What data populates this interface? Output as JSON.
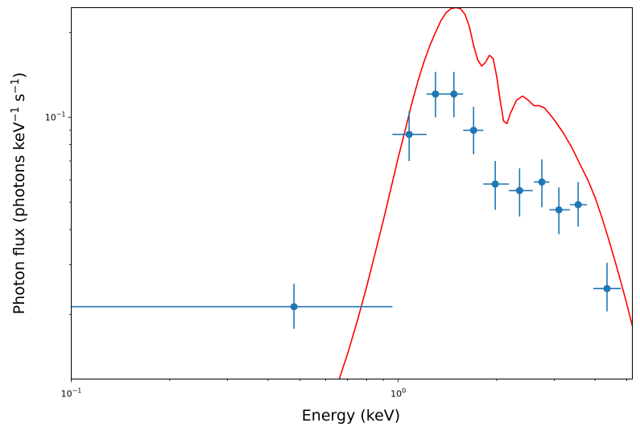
{
  "chart_data": {
    "type": "scatter",
    "xlabel": "Energy (keV)",
    "ylabel": {
      "prefix": "Photon flux (photons keV",
      "sup1": "−1",
      "mid": " s",
      "sup2": "−1",
      "suffix": ")"
    },
    "x_scale": "log",
    "y_scale": "log",
    "xlim": [
      0.1,
      5.2
    ],
    "ylim": [
      0.0118,
      0.245
    ],
    "x_ticks": [
      {
        "value": 0.1,
        "base": "10",
        "exp": "−1"
      },
      {
        "value": 1,
        "base": "10",
        "exp": "0"
      }
    ],
    "y_ticks": [
      {
        "value": 0.1,
        "base": "10",
        "exp": "−1"
      }
    ],
    "colors": {
      "data": "#1f77b4",
      "model": "#ff0000"
    },
    "series": [
      {
        "kind": "errorbar-points",
        "points": [
          {
            "x": 0.48,
            "xlo": 0.1,
            "xhi": 0.96,
            "y": 0.0213,
            "ylo": 0.0178,
            "yhi": 0.0257
          },
          {
            "x": 1.08,
            "xlo": 0.96,
            "xhi": 1.22,
            "y": 0.087,
            "ylo": 0.07,
            "yhi": 0.105
          },
          {
            "x": 1.3,
            "xlo": 1.22,
            "xhi": 1.38,
            "y": 0.121,
            "ylo": 0.1,
            "yhi": 0.145
          },
          {
            "x": 1.48,
            "xlo": 1.38,
            "xhi": 1.58,
            "y": 0.121,
            "ylo": 0.1,
            "yhi": 0.145
          },
          {
            "x": 1.7,
            "xlo": 1.58,
            "xhi": 1.82,
            "y": 0.09,
            "ylo": 0.074,
            "yhi": 0.109
          },
          {
            "x": 1.98,
            "xlo": 1.82,
            "xhi": 2.18,
            "y": 0.058,
            "ylo": 0.047,
            "yhi": 0.07
          },
          {
            "x": 2.35,
            "xlo": 2.18,
            "xhi": 2.58,
            "y": 0.055,
            "ylo": 0.0445,
            "yhi": 0.066
          },
          {
            "x": 2.75,
            "xlo": 2.6,
            "xhi": 2.9,
            "y": 0.059,
            "ylo": 0.048,
            "yhi": 0.071
          },
          {
            "x": 3.1,
            "xlo": 2.9,
            "xhi": 3.35,
            "y": 0.047,
            "ylo": 0.0385,
            "yhi": 0.0565
          },
          {
            "x": 3.55,
            "xlo": 3.35,
            "xhi": 3.78,
            "y": 0.049,
            "ylo": 0.041,
            "yhi": 0.059
          },
          {
            "x": 4.35,
            "xlo": 3.95,
            "xhi": 4.8,
            "y": 0.0247,
            "ylo": 0.0205,
            "yhi": 0.0305
          }
        ]
      },
      {
        "kind": "model-line",
        "x": [
          0.66,
          0.7,
          0.75,
          0.8,
          0.85,
          0.9,
          0.95,
          1.0,
          1.05,
          1.1,
          1.15,
          1.2,
          1.25,
          1.3,
          1.35,
          1.4,
          1.45,
          1.5,
          1.55,
          1.6,
          1.65,
          1.7,
          1.75,
          1.8,
          1.85,
          1.9,
          1.95,
          2.0,
          2.05,
          2.1,
          2.15,
          2.2,
          2.3,
          2.4,
          2.5,
          2.6,
          2.7,
          2.8,
          2.9,
          3.0,
          3.2,
          3.4,
          3.6,
          3.8,
          4.0,
          4.2,
          4.4,
          4.6,
          4.8,
          5.0,
          5.2
        ],
        "y": [
          0.0118,
          0.0145,
          0.019,
          0.025,
          0.033,
          0.043,
          0.056,
          0.072,
          0.09,
          0.112,
          0.135,
          0.158,
          0.18,
          0.2,
          0.22,
          0.235,
          0.243,
          0.245,
          0.243,
          0.232,
          0.21,
          0.18,
          0.16,
          0.152,
          0.157,
          0.166,
          0.162,
          0.14,
          0.115,
          0.097,
          0.095,
          0.103,
          0.115,
          0.119,
          0.115,
          0.11,
          0.11,
          0.108,
          0.103,
          0.098,
          0.088,
          0.078,
          0.068,
          0.06,
          0.052,
          0.044,
          0.037,
          0.031,
          0.026,
          0.0218,
          0.0182
        ]
      }
    ]
  }
}
